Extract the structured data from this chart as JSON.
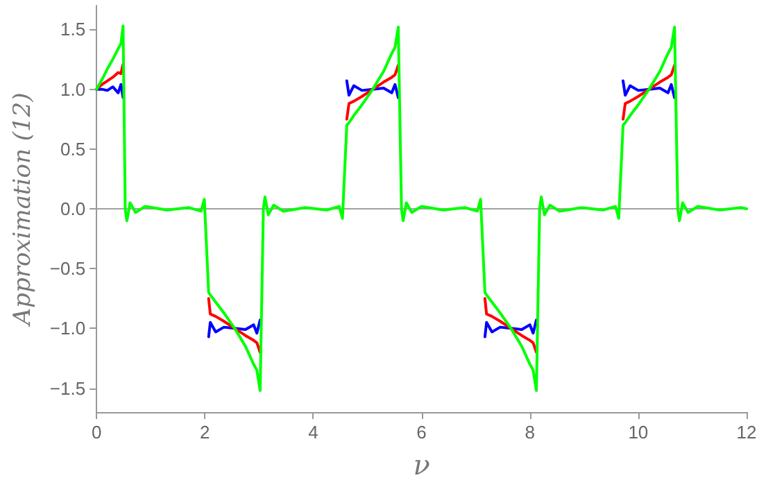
{
  "chart_data": {
    "type": "line",
    "xlabel": "ν",
    "ylabel": "Approximation (12)",
    "x": [
      0,
      0.1,
      0.2,
      0.3,
      0.4,
      0.45,
      0.49,
      0.53,
      0.56,
      0.62,
      0.72,
      0.9,
      1.3,
      1.7,
      1.93,
      1.99,
      2.07,
      2.1,
      2.2,
      2.35,
      2.55,
      2.75,
      2.9,
      2.96,
      3.02,
      3.08,
      3.11,
      3.17,
      3.27,
      3.45,
      3.85,
      4.25,
      4.48,
      4.54,
      4.62,
      4.66,
      4.75,
      4.9,
      5.1,
      5.3,
      5.45,
      5.51,
      5.57,
      5.63,
      5.66,
      5.72,
      5.82,
      6.0,
      6.4,
      6.8,
      7.03,
      7.09,
      7.17,
      7.2,
      7.3,
      7.45,
      7.65,
      7.85,
      8.0,
      8.06,
      8.12,
      8.18,
      8.21,
      8.27,
      8.37,
      8.55,
      8.95,
      9.35,
      9.58,
      9.64,
      9.72,
      9.76,
      9.85,
      10.0,
      10.2,
      10.4,
      10.55,
      10.61,
      10.67,
      10.73,
      10.76,
      10.82,
      10.92,
      11.1,
      11.5,
      11.9,
      12
    ],
    "series": [
      {
        "color": "#0000ff",
        "values": [
          1.0,
          1.0,
          0.99,
          1.02,
          0.97,
          1.04,
          0.93,
          null,
          null,
          null,
          null,
          null,
          null,
          null,
          null,
          null,
          -1.07,
          -0.95,
          -1.03,
          -0.99,
          -1,
          -1.01,
          -0.97,
          -1.04,
          -0.93,
          null,
          null,
          null,
          null,
          null,
          null,
          null,
          null,
          null,
          1.07,
          0.95,
          1.03,
          0.99,
          1,
          1.01,
          0.97,
          1.04,
          0.93,
          null,
          null,
          null,
          null,
          null,
          null,
          null,
          null,
          null,
          -1.07,
          -0.95,
          -1.03,
          -0.99,
          -1,
          -1.01,
          -0.97,
          -1.04,
          -0.93,
          null,
          null,
          null,
          null,
          null,
          null,
          null,
          null,
          null,
          1.07,
          0.95,
          1.03,
          0.99,
          1,
          1.01,
          0.97,
          1.04,
          0.93,
          null,
          null,
          null,
          null,
          null,
          null,
          null,
          null
        ]
      },
      {
        "color": "#ff0000",
        "values": [
          1.0,
          1.04,
          1.07,
          1.1,
          1.14,
          1.13,
          1.21,
          null,
          null,
          null,
          null,
          null,
          null,
          null,
          null,
          null,
          -0.75,
          -0.88,
          -0.9,
          -0.94,
          -1,
          -1.06,
          -1.1,
          -1.12,
          -1.2,
          null,
          null,
          null,
          null,
          null,
          null,
          null,
          null,
          null,
          0.75,
          0.88,
          0.9,
          0.94,
          1,
          1.06,
          1.1,
          1.12,
          1.2,
          null,
          null,
          null,
          null,
          null,
          null,
          null,
          null,
          null,
          -0.75,
          -0.88,
          -0.9,
          -0.94,
          -1,
          -1.06,
          -1.1,
          -1.12,
          -1.2,
          null,
          null,
          null,
          null,
          null,
          null,
          null,
          null,
          null,
          0.75,
          0.88,
          0.9,
          0.94,
          1,
          1.06,
          1.1,
          1.12,
          1.2,
          null,
          null,
          null,
          null,
          null,
          null,
          null,
          null
        ]
      },
      {
        "color": "#00ff00",
        "values": [
          1.0,
          1.08,
          1.17,
          1.25,
          1.34,
          1.38,
          1.53,
          0,
          -0.1,
          0.05,
          -0.03,
          0.02,
          -0.01,
          0.01,
          -0.02,
          0.08,
          -0.7,
          -0.72,
          -0.78,
          -0.87,
          -1,
          -1.15,
          -1.3,
          -1.35,
          -1.52,
          0,
          0.1,
          -0.05,
          0.03,
          -0.02,
          0.01,
          -0.01,
          0.02,
          -0.08,
          0.7,
          0.72,
          0.78,
          0.87,
          1,
          1.15,
          1.3,
          1.35,
          1.52,
          0,
          -0.1,
          0.05,
          -0.03,
          0.02,
          -0.01,
          0.01,
          -0.02,
          0.08,
          -0.7,
          -0.72,
          -0.78,
          -0.87,
          -1,
          -1.15,
          -1.3,
          -1.35,
          -1.52,
          0,
          0.1,
          -0.05,
          0.03,
          -0.02,
          0.01,
          -0.01,
          0.02,
          -0.08,
          0.7,
          0.72,
          0.78,
          0.87,
          1,
          1.15,
          1.3,
          1.35,
          1.52,
          0,
          -0.1,
          0.05,
          -0.03,
          0.02,
          -0.01,
          0.01,
          0
        ]
      }
    ],
    "xlim": [
      0,
      12
    ],
    "xticks": [
      0,
      2,
      4,
      6,
      8,
      10,
      12
    ],
    "ylim": [
      -1.7,
      1.7
    ],
    "yticks": [
      {
        "value": -1.5,
        "label": "−1.5"
      },
      {
        "value": -1,
        "label": "−1.0"
      },
      {
        "value": -0.5,
        "label": "−0.5"
      },
      {
        "value": 0,
        "label": "0.0"
      },
      0.5,
      {
        "value": 1,
        "label": "1.0"
      },
      1.5
    ],
    "ref_lines": [
      {
        "axis": "y",
        "value": 0,
        "color": "#a0a0a0"
      }
    ],
    "grid": false,
    "marker": "none",
    "line_style": "solid"
  }
}
